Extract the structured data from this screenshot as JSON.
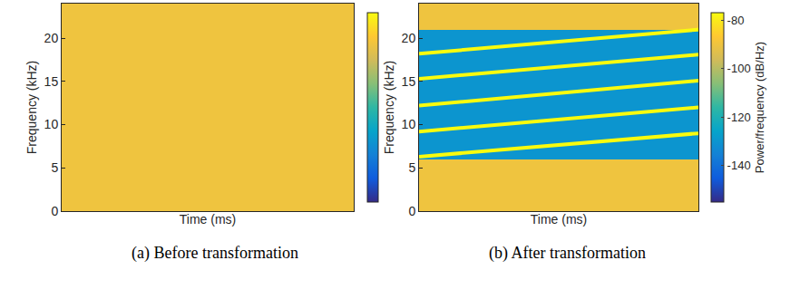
{
  "chart_data": [
    {
      "type": "heatmap",
      "caption": "(a) Before transformation",
      "xlabel": "Time (ms)",
      "ylabel": "Frequency (kHz)",
      "tick_labels": "y",
      "xlim": [
        0,
        8
      ],
      "ylim": [
        0,
        24
      ],
      "yticks": [
        0,
        5,
        10,
        15,
        20
      ],
      "x": [
        0.5,
        1.5,
        2.5,
        3.5,
        4.5,
        5.5,
        6.5,
        7.5
      ],
      "y": [
        0.5,
        1.5,
        2.5,
        3.5,
        4.5,
        5.5,
        6.5,
        7.5,
        8.5,
        9.5,
        10.5,
        11.5,
        12.5,
        13.5,
        14.5,
        15.5,
        16.5,
        17.5,
        18.5,
        19.5,
        20.5,
        21.5,
        22.5,
        23.5
      ],
      "z": [
        [
          -90,
          -90,
          -90,
          -90,
          -90,
          -90,
          -90,
          -90
        ],
        [
          -90,
          -90,
          -90,
          -90,
          -90,
          -90,
          -90,
          -90
        ],
        [
          -90,
          -90,
          -90,
          -90,
          -90,
          -90,
          -90,
          -90
        ],
        [
          -90,
          -90,
          -90,
          -90,
          -90,
          -90,
          -90,
          -90
        ],
        [
          -90,
          -90,
          -90,
          -90,
          -90,
          -90,
          -90,
          -90
        ],
        [
          -90,
          -90,
          -90,
          -90,
          -90,
          -90,
          -90,
          -90
        ],
        [
          -90,
          -90,
          -90,
          -90,
          -90,
          -90,
          -90,
          -90
        ],
        [
          -90,
          -90,
          -90,
          -90,
          -90,
          -90,
          -90,
          -90
        ],
        [
          -90,
          -90,
          -90,
          -90,
          -90,
          -90,
          -90,
          -90
        ],
        [
          -90,
          -90,
          -90,
          -90,
          -90,
          -90,
          -90,
          -90
        ],
        [
          -90,
          -90,
          -90,
          -90,
          -90,
          -90,
          -90,
          -90
        ],
        [
          -90,
          -90,
          -90,
          -90,
          -90,
          -90,
          -90,
          -90
        ],
        [
          -90,
          -90,
          -90,
          -90,
          -90,
          -90,
          -90,
          -90
        ],
        [
          -90,
          -90,
          -90,
          -90,
          -90,
          -90,
          -90,
          -90
        ],
        [
          -90,
          -90,
          -90,
          -90,
          -90,
          -90,
          -90,
          -90
        ],
        [
          -90,
          -90,
          -90,
          -90,
          -90,
          -90,
          -90,
          -90
        ],
        [
          -90,
          -90,
          -90,
          -90,
          -90,
          -90,
          -90,
          -90
        ],
        [
          -90,
          -90,
          -90,
          -90,
          -90,
          -90,
          -90,
          -90
        ],
        [
          -90,
          -90,
          -90,
          -90,
          -90,
          -90,
          -90,
          -90
        ],
        [
          -90,
          -90,
          -90,
          -90,
          -90,
          -90,
          -90,
          -90
        ],
        [
          -90,
          -90,
          -90,
          -90,
          -90,
          -90,
          -90,
          -90
        ],
        [
          -90,
          -90,
          -90,
          -90,
          -90,
          -90,
          -90,
          -90
        ],
        [
          -90,
          -90,
          -90,
          -90,
          -90,
          -90,
          -90,
          -90
        ],
        [
          -90,
          -90,
          -90,
          -90,
          -90,
          -90,
          -90,
          -90
        ]
      ],
      "colorbar": {
        "range": [
          -155,
          -77
        ]
      }
    },
    {
      "type": "heatmap",
      "caption": "(b) After transformation",
      "xlabel": "Time (ms)",
      "ylabel": "Frequency (kHz)",
      "tick_labels": "y",
      "xlim": [
        0,
        8
      ],
      "ylim": [
        0,
        24
      ],
      "yticks": [
        0,
        5,
        10,
        15,
        20
      ],
      "x": [
        0.5,
        1.5,
        2.5,
        3.5,
        4.5,
        5.5,
        6.5,
        7.5
      ],
      "y": [
        0.5,
        1.5,
        2.5,
        3.5,
        4.5,
        5.5,
        6.5,
        7.5,
        8.5,
        9.5,
        10.5,
        11.5,
        12.5,
        13.5,
        14.5,
        15.5,
        16.5,
        17.5,
        18.5,
        19.5,
        20.5,
        21.5,
        22.5,
        23.5
      ],
      "z": [
        [
          -90,
          -90,
          -90,
          -90,
          -90,
          -90,
          -90,
          -90
        ],
        [
          -90,
          -90,
          -90,
          -90,
          -90,
          -90,
          -90,
          -90
        ],
        [
          -90,
          -90,
          -90,
          -90,
          -90,
          -90,
          -90,
          -90
        ],
        [
          -90,
          -90,
          -90,
          -90,
          -90,
          -90,
          -90,
          -90
        ],
        [
          -90,
          -90,
          -90,
          -90,
          -90,
          -90,
          -90,
          -90
        ],
        [
          -90,
          -90,
          -90,
          -90,
          -90,
          -90,
          -90,
          -90
        ],
        [
          -130,
          -130,
          -130,
          -130,
          -130,
          -130,
          -130,
          -130
        ],
        [
          -130,
          -130,
          -130,
          -130,
          -130,
          -130,
          -130,
          -130
        ],
        [
          -130,
          -130,
          -130,
          -130,
          -130,
          -130,
          -130,
          -130
        ],
        [
          -130,
          -130,
          -130,
          -130,
          -130,
          -130,
          -130,
          -130
        ],
        [
          -130,
          -130,
          -130,
          -130,
          -130,
          -130,
          -130,
          -130
        ],
        [
          -130,
          -130,
          -130,
          -130,
          -130,
          -130,
          -130,
          -130
        ],
        [
          -130,
          -130,
          -130,
          -130,
          -130,
          -130,
          -130,
          -130
        ],
        [
          -130,
          -130,
          -130,
          -130,
          -130,
          -130,
          -130,
          -130
        ],
        [
          -130,
          -130,
          -130,
          -130,
          -130,
          -130,
          -130,
          -130
        ],
        [
          -130,
          -130,
          -130,
          -130,
          -130,
          -130,
          -130,
          -130
        ],
        [
          -130,
          -130,
          -130,
          -130,
          -130,
          -130,
          -130,
          -130
        ],
        [
          -130,
          -130,
          -130,
          -130,
          -130,
          -130,
          -130,
          -130
        ],
        [
          -130,
          -130,
          -130,
          -130,
          -130,
          -130,
          -130,
          -130
        ],
        [
          -130,
          -130,
          -130,
          -130,
          -130,
          -130,
          -130,
          -130
        ],
        [
          -130,
          -130,
          -130,
          -130,
          -130,
          -130,
          -130,
          -130
        ],
        [
          -90,
          -90,
          -90,
          -90,
          -90,
          -90,
          -90,
          -90
        ],
        [
          -90,
          -90,
          -90,
          -90,
          -90,
          -90,
          -90,
          -90
        ],
        [
          -90,
          -90,
          -90,
          -90,
          -90,
          -90,
          -90,
          -90
        ]
      ],
      "lines": [
        {
          "x": [
            0,
            8
          ],
          "y": [
            6.3,
            9.0
          ],
          "color": "#f9fb0e"
        },
        {
          "x": [
            0,
            8
          ],
          "y": [
            9.2,
            12.0
          ],
          "color": "#f9fb0e"
        },
        {
          "x": [
            0,
            8
          ],
          "y": [
            12.2,
            15.1
          ],
          "color": "#f9fb0e"
        },
        {
          "x": [
            0,
            8
          ],
          "y": [
            15.3,
            18.1
          ],
          "color": "#f9fb0e"
        },
        {
          "x": [
            0,
            8
          ],
          "y": [
            18.2,
            21.0
          ],
          "color": "#f9fb0e"
        }
      ],
      "colorbar": {
        "range": [
          -155,
          -77
        ],
        "ticks": [
          -80,
          -100,
          -120,
          -140
        ],
        "title": "Power/frequency (dB/Hz)"
      }
    }
  ]
}
